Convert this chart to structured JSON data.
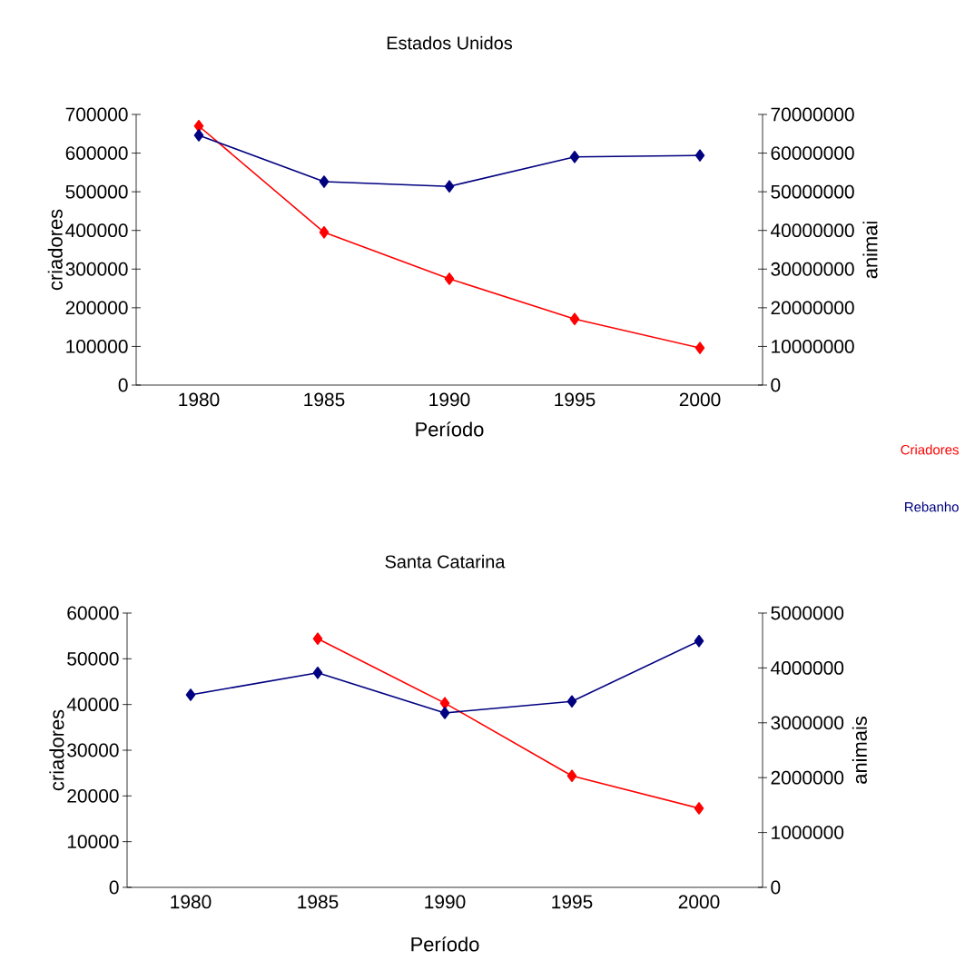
{
  "chart_data": [
    {
      "type": "line",
      "title": "Estados Unidos",
      "xlabel": "Período",
      "ylabel": "criadores",
      "y2label": "animai",
      "categories": [
        "1980",
        "1985",
        "1990",
        "1995",
        "2000"
      ],
      "series": [
        {
          "name": "Criadores",
          "color": "#ff0000",
          "values": [
            670000,
            395000,
            275000,
            171000,
            96000
          ]
        },
        {
          "name": "Rebanho",
          "color": "#000080",
          "axis": "y2",
          "values": [
            64600000,
            52600000,
            51400000,
            59000000,
            59400000
          ]
        }
      ],
      "ylim": [
        0,
        700000
      ],
      "yticks": [
        0,
        100000,
        200000,
        300000,
        400000,
        500000,
        600000,
        700000
      ],
      "y2lim": [
        0,
        70000000
      ],
      "y2ticks": [
        0,
        10000000,
        20000000,
        30000000,
        40000000,
        50000000,
        60000000,
        70000000
      ],
      "marker": "diamond",
      "line_style": "solid",
      "legend": "right"
    },
    {
      "type": "line",
      "title": "Santa Catarina",
      "xlabel": "Período",
      "ylabel": "criadores",
      "y2label": "animais",
      "categories": [
        "1980",
        "1985",
        "1990",
        "1995",
        "2000"
      ],
      "series": [
        {
          "color": "#ff0000",
          "values": [
            null,
            54400,
            40300,
            24400,
            17300
          ]
        },
        {
          "color": "#000080",
          "axis": "y2",
          "values": [
            3510000,
            3910000,
            3180000,
            3390000,
            4490000
          ]
        }
      ],
      "ylim": [
        0,
        60000
      ],
      "yticks": [
        0,
        10000,
        20000,
        30000,
        40000,
        50000,
        60000
      ],
      "y2lim": [
        0,
        5000000
      ],
      "y2ticks": [
        0,
        1000000,
        2000000,
        3000000,
        4000000,
        5000000
      ],
      "marker": "diamond",
      "line_style": "solid"
    }
  ]
}
